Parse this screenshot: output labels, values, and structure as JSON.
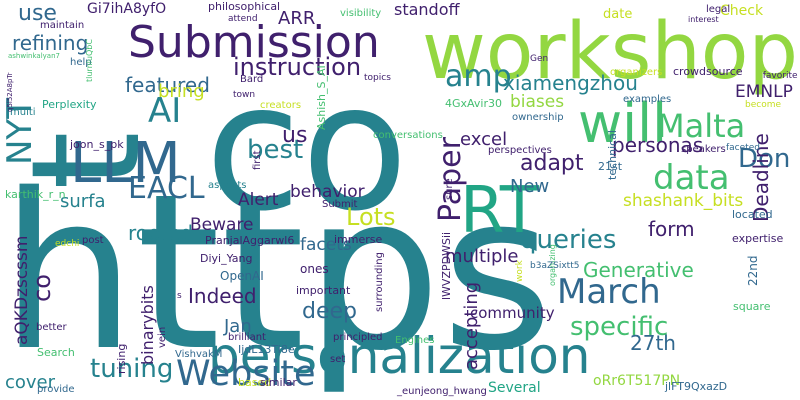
{
  "word_cloud": {
    "palette": {
      "navy": "#3b3f8c",
      "indigo": "#40206d",
      "slate": "#31688e",
      "teal": "#26828e",
      "sea": "#21a585",
      "green": "#44bf70",
      "lime": "#93d741",
      "yellow": "#c6df22",
      "violet": "#482878"
    },
    "words": [
      {
        "text": "https",
        "color": "teal"
      },
      {
        "text": "co",
        "color": "teal"
      },
      {
        "text": "t",
        "color": "teal"
      },
      {
        "text": "workshop",
        "color": "lime"
      },
      {
        "text": "personalization",
        "color": "teal"
      },
      {
        "text": "Submission",
        "color": "indigo"
      },
      {
        "text": "LLM",
        "color": "slate"
      },
      {
        "text": "RT",
        "color": "sea"
      },
      {
        "text": "will",
        "color": "green"
      },
      {
        "text": "Paper",
        "color": "indigo"
      },
      {
        "text": "data",
        "color": "green"
      },
      {
        "text": "Malta",
        "color": "green"
      },
      {
        "text": "Website",
        "color": "slate"
      },
      {
        "text": "March",
        "color": "slate"
      },
      {
        "text": "amp",
        "color": "teal"
      },
      {
        "text": "AI",
        "color": "teal"
      },
      {
        "text": "NYT",
        "color": "teal"
      },
      {
        "text": "EACL",
        "color": "slate"
      },
      {
        "text": "instruction",
        "color": "indigo"
      },
      {
        "text": "best",
        "color": "teal"
      },
      {
        "text": "xiamengzhou",
        "color": "teal"
      },
      {
        "text": "queries",
        "color": "teal"
      },
      {
        "text": "specific",
        "color": "green"
      },
      {
        "text": "Don",
        "color": "slate"
      },
      {
        "text": "tuning",
        "color": "teal"
      },
      {
        "text": "Lots",
        "color": "yellow"
      },
      {
        "text": "Deadline",
        "color": "indigo"
      },
      {
        "text": "adapt",
        "color": "indigo"
      },
      {
        "text": "personas",
        "color": "indigo"
      },
      {
        "text": "featured",
        "color": "slate"
      },
      {
        "text": "refining",
        "color": "slate"
      },
      {
        "text": "use",
        "color": "slate"
      },
      {
        "text": "us",
        "color": "indigo"
      },
      {
        "text": "bring",
        "color": "yellow"
      },
      {
        "text": "Indeed",
        "color": "indigo"
      },
      {
        "text": "deep",
        "color": "slate"
      },
      {
        "text": "Generative",
        "color": "green"
      },
      {
        "text": "form",
        "color": "indigo"
      },
      {
        "text": "27th",
        "color": "slate"
      },
      {
        "text": "excel",
        "color": "indigo"
      },
      {
        "text": "biases",
        "color": "lime"
      },
      {
        "text": "EMNLP",
        "color": "indigo"
      },
      {
        "text": "behavior",
        "color": "indigo"
      },
      {
        "text": "Alert",
        "color": "indigo"
      },
      {
        "text": "New",
        "color": "slate"
      },
      {
        "text": "facets",
        "color": "slate"
      },
      {
        "text": "multiple",
        "color": "indigo"
      },
      {
        "text": "shashank_bits",
        "color": "yellow"
      },
      {
        "text": "Beware",
        "color": "indigo"
      },
      {
        "text": "rooted",
        "color": "teal"
      },
      {
        "text": "surfa",
        "color": "teal"
      },
      {
        "text": "accepting",
        "color": "indigo"
      },
      {
        "text": "aQKDzscssm",
        "color": "indigo"
      },
      {
        "text": "binarybits",
        "color": "indigo"
      },
      {
        "text": "cover",
        "color": "teal"
      },
      {
        "text": "Jan",
        "color": "slate"
      },
      {
        "text": "co",
        "color": "indigo"
      },
      {
        "text": "ARR",
        "color": "indigo"
      },
      {
        "text": "standoff",
        "color": "indigo"
      },
      {
        "text": "Check",
        "color": "yellow"
      },
      {
        "text": "date",
        "color": "yellow"
      },
      {
        "text": "Gi7ihA8yfO",
        "color": "indigo"
      },
      {
        "text": "maintain",
        "color": "indigo"
      },
      {
        "text": "philosophical",
        "color": "indigo"
      },
      {
        "text": "visibility",
        "color": "green"
      },
      {
        "text": "attend",
        "color": "indigo"
      },
      {
        "text": "Bard",
        "color": "indigo"
      },
      {
        "text": "legal",
        "color": "indigo"
      },
      {
        "text": "crowdsource",
        "color": "indigo"
      },
      {
        "text": "organizers",
        "color": "yellow"
      },
      {
        "text": "Perplexity",
        "color": "sea"
      },
      {
        "text": "help",
        "color": "slate"
      },
      {
        "text": "joon_s_pk",
        "color": "indigo"
      },
      {
        "text": "multi",
        "color": "teal"
      },
      {
        "text": "town",
        "color": "indigo"
      },
      {
        "text": "creators",
        "color": "yellow"
      },
      {
        "text": "first",
        "color": "indigo"
      },
      {
        "text": "Ashish_S_AI",
        "color": "green"
      },
      {
        "text": "4GxAvir30",
        "color": "green"
      },
      {
        "text": "ownership",
        "color": "slate"
      },
      {
        "text": "examples",
        "color": "slate"
      },
      {
        "text": "speakers",
        "color": "indigo"
      },
      {
        "text": "technical",
        "color": "slate"
      },
      {
        "text": "21st",
        "color": "slate"
      },
      {
        "text": "become",
        "color": "yellow"
      },
      {
        "text": "favorite",
        "color": "indigo"
      },
      {
        "text": "Gen",
        "color": "indigo"
      },
      {
        "text": "topics",
        "color": "indigo"
      },
      {
        "text": "conversations",
        "color": "green"
      },
      {
        "text": "sure",
        "color": "indigo"
      },
      {
        "text": "perspectives",
        "color": "indigo"
      },
      {
        "text": "faceted",
        "color": "slate"
      },
      {
        "text": "karthik_r_n",
        "color": "green"
      },
      {
        "text": "aspects",
        "color": "teal"
      },
      {
        "text": "post",
        "color": "indigo"
      },
      {
        "text": "PranjalAggarwl6",
        "color": "indigo"
      },
      {
        "text": "Diyi_Yang",
        "color": "indigo"
      },
      {
        "text": "edchi",
        "color": "yellow"
      },
      {
        "text": "Submit",
        "color": "indigo"
      },
      {
        "text": "immerse",
        "color": "indigo"
      },
      {
        "text": "lWVZPDWSii",
        "color": "indigo"
      },
      {
        "text": "located",
        "color": "slate"
      },
      {
        "text": "expertise",
        "color": "indigo"
      },
      {
        "text": "ones",
        "color": "indigo"
      },
      {
        "text": "OpenAI",
        "color": "slate"
      },
      {
        "text": "important",
        "color": "indigo"
      },
      {
        "text": "community",
        "color": "indigo"
      },
      {
        "text": "22nd",
        "color": "slate"
      },
      {
        "text": "work",
        "color": "yellow"
      },
      {
        "text": "organizing",
        "color": "green"
      },
      {
        "text": "square",
        "color": "green"
      },
      {
        "text": "better",
        "color": "indigo"
      },
      {
        "text": "Search",
        "color": "green"
      },
      {
        "text": "VishvakM",
        "color": "slate"
      },
      {
        "text": "IjdL13Ti8e",
        "color": "slate"
      },
      {
        "text": "brilliant",
        "color": "indigo"
      },
      {
        "text": "principled",
        "color": "indigo"
      },
      {
        "text": "set",
        "color": "indigo"
      },
      {
        "text": "surrounding",
        "color": "indigo"
      },
      {
        "text": "Engines",
        "color": "green"
      },
      {
        "text": "vein",
        "color": "indigo"
      },
      {
        "text": "rising",
        "color": "indigo"
      },
      {
        "text": "provide",
        "color": "slate"
      },
      {
        "text": "based",
        "color": "yellow"
      },
      {
        "text": "similar",
        "color": "indigo"
      },
      {
        "text": "_eunjeong_hwang",
        "color": "indigo"
      },
      {
        "text": "Several",
        "color": "sea"
      },
      {
        "text": "oRr6T517PN",
        "color": "lime"
      },
      {
        "text": "jlFT9QxazD",
        "color": "slate"
      },
      {
        "text": "interest",
        "color": "indigo"
      },
      {
        "text": "ashwinkalyan7",
        "color": "green"
      },
      {
        "text": "tlurnluQbC",
        "color": "green"
      },
      {
        "text": "q5l52A8pTr",
        "color": "indigo"
      },
      {
        "text": "b3aZSixtt5",
        "color": "slate"
      },
      {
        "text": "s",
        "color": "indigo"
      },
      {
        "text": "m",
        "color": "indigo"
      }
    ]
  }
}
